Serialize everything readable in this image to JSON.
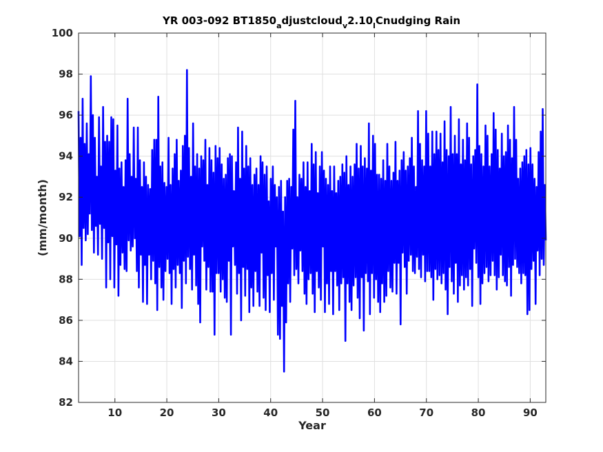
{
  "chart_data": {
    "type": "line",
    "title": {
      "main": "YR 003-092 BT1850",
      "sub1": "a",
      "mid1": "djustcloud",
      "sub2": "v",
      "mid2": "2.10",
      "sub3": "l",
      "end": "Cnudging Rain"
    },
    "xlabel": "Year",
    "ylabel": "(mm/month)",
    "xlim": [
      3,
      93
    ],
    "ylim": [
      82,
      100
    ],
    "xticks": [
      10,
      20,
      30,
      40,
      50,
      60,
      70,
      80,
      90
    ],
    "yticks": [
      82,
      84,
      86,
      88,
      90,
      92,
      94,
      96,
      98,
      100
    ],
    "grid": true,
    "series": [
      {
        "color": "#0000ff",
        "x_start": 3,
        "x_end": 93,
        "points_per_year": 12,
        "values": [
          96.2,
          90.1,
          94.9,
          88.7,
          96.8,
          90.5,
          94.6,
          89.9,
          95.6,
          90.2,
          94.1,
          91.2,
          97.9,
          90.4,
          96.0,
          89.3,
          94.9,
          90.6,
          93.0,
          89.2,
          95.9,
          90.7,
          93.5,
          89.0,
          96.4,
          90.5,
          94.7,
          87.6,
          95.0,
          89.8,
          94.7,
          88.0,
          95.9,
          90.1,
          95.8,
          87.6,
          93.3,
          89.7,
          95.5,
          87.2,
          93.4,
          88.7,
          93.7,
          89.3,
          92.5,
          88.5,
          93.8,
          88.4,
          96.8,
          89.9,
          94.1,
          89.4,
          93.0,
          89.6,
          95.4,
          90.0,
          92.9,
          88.4,
          95.4,
          87.6,
          93.8,
          89.2,
          92.5,
          86.9,
          93.7,
          88.7,
          93.0,
          86.8,
          92.6,
          89.2,
          92.4,
          88.0,
          94.3,
          88.9,
          94.8,
          87.8,
          94.8,
          86.5,
          96.9,
          88.6,
          93.5,
          87.6,
          93.7,
          87.0,
          92.7,
          88.4,
          92.5,
          89.0,
          94.9,
          88.3,
          92.6,
          86.8,
          93.4,
          88.5,
          94.1,
          87.6,
          94.8,
          88.7,
          92.8,
          88.3,
          93.3,
          86.6,
          94.5,
          88.9,
          95.0,
          87.8,
          98.2,
          89.1,
          94.4,
          88.5,
          93.0,
          87.5,
          95.6,
          89.2,
          93.5,
          87.7,
          94.1,
          86.8,
          93.4,
          85.9,
          94.0,
          89.6,
          93.8,
          88.9,
          94.8,
          87.5,
          92.6,
          88.6,
          94.4,
          87.4,
          93.8,
          87.4,
          93.2,
          85.3,
          94.5,
          88.3,
          93.9,
          88.3,
          94.4,
          87.4,
          93.6,
          88.0,
          92.9,
          87.1,
          93.1,
          86.9,
          93.9,
          88.9,
          94.1,
          85.3,
          94.0,
          89.6,
          92.3,
          88.7,
          93.7,
          87.3,
          95.4,
          88.3,
          92.9,
          86.0,
          95.2,
          88.6,
          93.4,
          87.2,
          94.5,
          88.5,
          93.5,
          86.4,
          93.9,
          87.6,
          92.6,
          86.7,
          93.1,
          88.4,
          93.4,
          87.4,
          92.6,
          86.7,
          94.0,
          89.3,
          93.7,
          87.1,
          93.1,
          86.5,
          93.5,
          88.2,
          91.8,
          86.4,
          92.9,
          88.3,
          93.5,
          87.0,
          92.6,
          89.6,
          92.0,
          85.3,
          92.5,
          85.1,
          92.8,
          86.7,
          91.3,
          83.5,
          92.0,
          85.9,
          92.8,
          87.8,
          92.9,
          86.9,
          92.5,
          89.5,
          95.3,
          88.2,
          96.7,
          88.5,
          92.0,
          87.8,
          93.1,
          89.4,
          92.9,
          88.4,
          93.7,
          87.3,
          92.5,
          86.8,
          93.7,
          88.0,
          92.3,
          88.3,
          94.6,
          87.3,
          93.6,
          86.4,
          94.2,
          88.4,
          92.2,
          87.6,
          93.5,
          87.0,
          94.2,
          89.6,
          93.3,
          86.4,
          92.9,
          87.8,
          92.6,
          86.8,
          93.5,
          88.4,
          92.3,
          86.3,
          93.5,
          88.4,
          92.2,
          87.7,
          92.8,
          86.5,
          93.0,
          87.8,
          93.6,
          88.1,
          93.2,
          85.0,
          94.0,
          87.8,
          92.6,
          86.9,
          93.5,
          86.5,
          93.0,
          87.7,
          93.6,
          88.1,
          94.6,
          87.1,
          93.4,
          86.1,
          94.5,
          88.1,
          93.5,
          85.5,
          93.9,
          88.3,
          93.4,
          87.9,
          95.6,
          86.3,
          93.3,
          88.3,
          95.0,
          87.1,
          94.6,
          88.0,
          93.1,
          86.9,
          93.1,
          86.4,
          92.9,
          87.8,
          93.8,
          86.9,
          92.8,
          87.2,
          94.6,
          88.4,
          93.5,
          87.6,
          92.8,
          87.4,
          93.2,
          88.8,
          94.7,
          87.3,
          92.8,
          88.8,
          93.3,
          85.8,
          93.8,
          89.3,
          94.2,
          88.6,
          93.3,
          87.3,
          93.5,
          88.9,
          93.9,
          89.2,
          94.9,
          88.4,
          93.5,
          88.3,
          92.5,
          89.1,
          96.2,
          88.5,
          94.6,
          88.1,
          93.8,
          89.2,
          93.5,
          87.9,
          96.2,
          88.4,
          95.1,
          88.4,
          93.5,
          88.1,
          95.2,
          87.0,
          94.1,
          88.5,
          95.2,
          88.0,
          94.3,
          88.2,
          95.1,
          87.8,
          93.7,
          88.3,
          95.7,
          87.5,
          94.3,
          86.3,
          94.0,
          88.6,
          96.4,
          87.9,
          94.1,
          87.3,
          95.0,
          88.8,
          94.1,
          86.9,
          95.8,
          87.7,
          93.6,
          88.2,
          94.8,
          87.5,
          93.8,
          88.1,
          95.6,
          87.7,
          94.9,
          88.5,
          93.6,
          86.7,
          94.0,
          89.5,
          94.3,
          88.8,
          97.5,
          88.1,
          94.5,
          86.8,
          94.1,
          87.8,
          93.5,
          88.3,
          95.5,
          88.6,
          95.0,
          87.9,
          93.5,
          88.2,
          94.1,
          88.9,
          96.1,
          88.2,
          95.3,
          87.5,
          94.3,
          88.1,
          93.4,
          89.2,
          95.1,
          88.2,
          94.0,
          87.9,
          94.2,
          87.7,
          95.5,
          88.6,
          94.8,
          87.2,
          93.9,
          88.7,
          96.4,
          89.0,
          94.8,
          88.6,
          92.9,
          88.3,
          93.4,
          87.8,
          93.7,
          88.3,
          94.0,
          88.2,
          94.3,
          86.3,
          93.6,
          86.5,
          94.4,
          88.5,
          93.6,
          88.9,
          92.9,
          86.8,
          92.5,
          89.4,
          94.2,
          88.2,
          95.2,
          89.0,
          96.3,
          88.7,
          92.6,
          89.9
        ]
      }
    ]
  }
}
